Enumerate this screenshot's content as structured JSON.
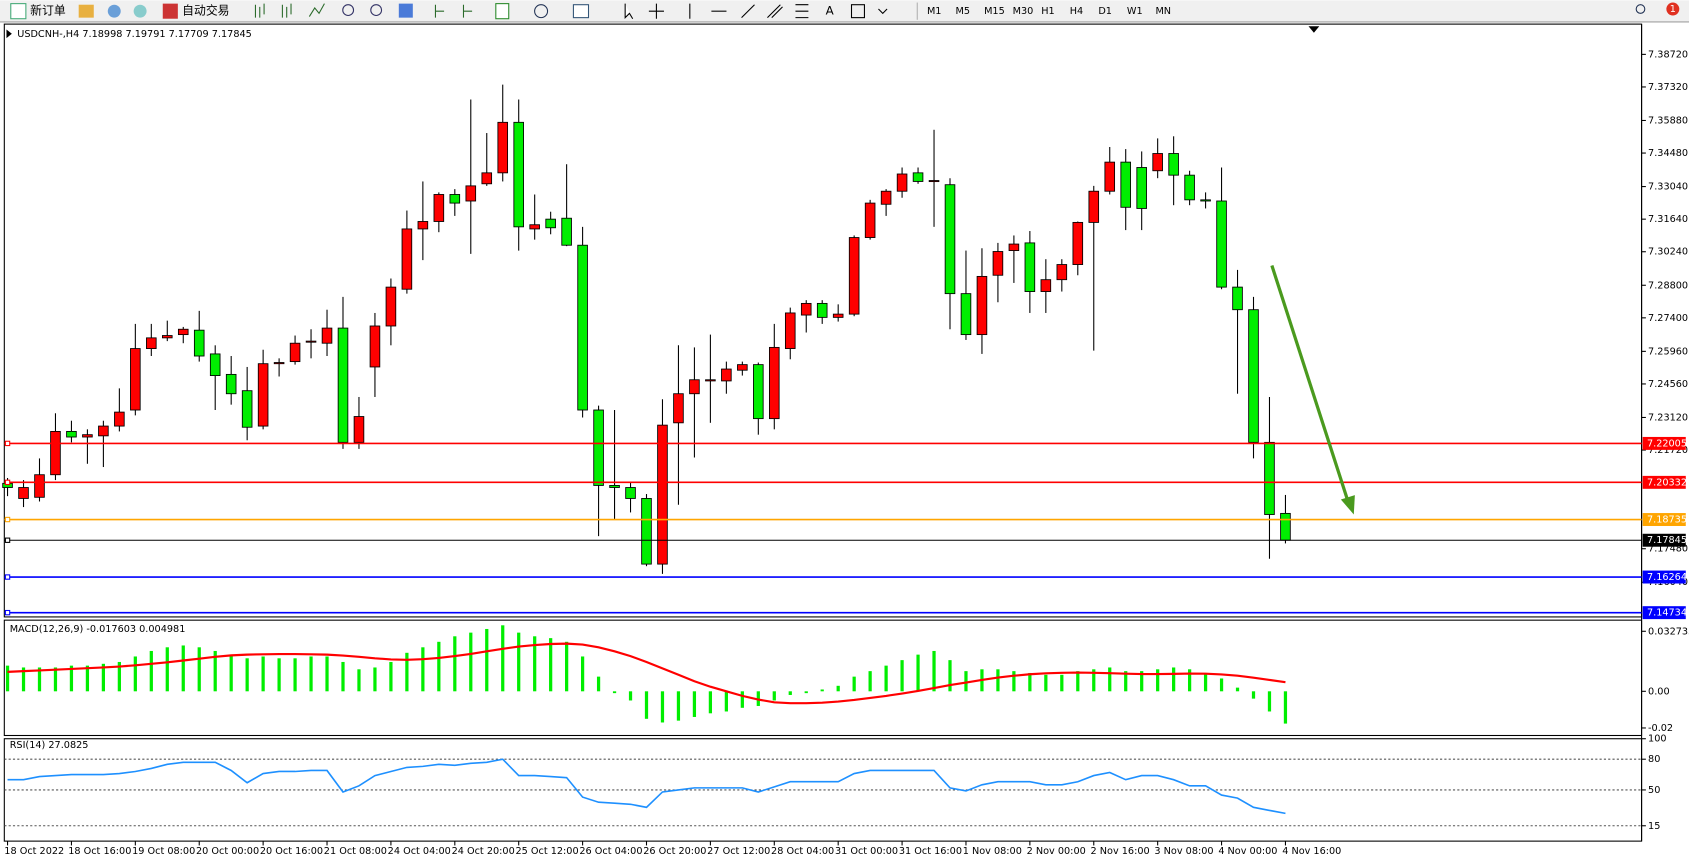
{
  "toolbar": {
    "new_order": "新订单",
    "auto_trading": "自动交易",
    "timeframes": [
      "M1",
      "M5",
      "M15",
      "M30",
      "H1",
      "H4",
      "D1",
      "W1",
      "MN"
    ],
    "badge": "1"
  },
  "chart_data": [
    {
      "type": "candlestick",
      "title": "USDCNH-,H4  7.18998 7.19791 7.17709 7.17845",
      "categories": [
        "18 Oct 2022",
        null,
        null,
        null,
        "18 Oct 16:00",
        null,
        null,
        null,
        "19 Oct 08:00",
        null,
        null,
        null,
        "20 Oct 00:00",
        null,
        null,
        null,
        "20 Oct 16:00",
        null,
        null,
        null,
        "21 Oct 08:00",
        null,
        null,
        null,
        "24 Oct 04:00",
        null,
        null,
        null,
        "24 Oct 20:00",
        null,
        null,
        null,
        "25 Oct 12:00",
        null,
        null,
        null,
        "26 Oct 04:00",
        null,
        null,
        null,
        "26 Oct 20:00",
        null,
        null,
        null,
        "27 Oct 12:00",
        null,
        null,
        null,
        "28 Oct 04:00",
        null,
        null,
        null,
        "31 Oct 00:00",
        null,
        null,
        null,
        "31 Oct 16:00",
        null,
        null,
        null,
        "1 Nov 08:00",
        null,
        null,
        null,
        "2 Nov 00:00",
        null,
        null,
        null,
        "2 Nov 16:00",
        null,
        null,
        null,
        "3 Nov 08:00",
        null,
        null,
        null,
        "4 Nov 00:00",
        null,
        null,
        null,
        "4 Nov 16:00"
      ],
      "open": [
        7.2029,
        7.1964,
        7.1969,
        7.2066,
        7.2252,
        7.2228,
        7.2233,
        7.2275,
        7.2344,
        7.2608,
        7.2654,
        7.2668,
        7.2687,
        7.2585,
        7.2497,
        7.2427,
        7.2275,
        7.2543,
        7.2552,
        7.2636,
        7.2631,
        7.2696,
        7.2205,
        7.2529,
        7.2705,
        7.2863,
        7.3122,
        7.3154,
        7.327,
        7.3242,
        7.3316,
        7.3363,
        7.358,
        7.3122,
        7.3164,
        7.3168,
        7.3052,
        7.2344,
        7.202,
        7.2011,
        7.1964,
        7.1682,
        7.2289,
        7.2414,
        7.2469,
        7.2469,
        7.2515,
        7.2539,
        7.2307,
        7.2608,
        7.2752,
        7.2802,
        7.2742,
        7.2756,
        7.3085,
        7.3228,
        7.3284,
        7.3363,
        7.3326,
        7.3312,
        7.2844,
        7.2668,
        7.2923,
        7.3029,
        7.3062,
        7.2853,
        7.2904,
        7.2969,
        7.315,
        7.3284,
        7.3409,
        7.3386,
        7.3372,
        7.3446,
        7.3353,
        7.3247,
        7.3242,
        7.2872,
        7.2775,
        7.2205,
        7.18998
      ],
      "high": [
        7.2052,
        7.2043,
        7.2136,
        7.233,
        7.2298,
        7.2261,
        7.2298,
        7.2437,
        7.2714,
        7.2714,
        7.2728,
        7.2701,
        7.277,
        7.2622,
        7.2576,
        7.2529,
        7.2603,
        7.2566,
        7.2664,
        7.2691,
        7.2775,
        7.283,
        7.24,
        7.2761,
        7.2909,
        7.3201,
        7.3326,
        7.3279,
        7.3293,
        7.3678,
        7.3534,
        7.3742,
        7.3678,
        7.327,
        7.3196,
        7.34,
        7.3131,
        7.2363,
        7.2344,
        7.2034,
        7.1983,
        7.239,
        7.2622,
        7.2613,
        7.2668,
        7.2552,
        7.2552,
        7.2548,
        7.2714,
        7.2784,
        7.2816,
        7.2816,
        7.2798,
        7.3094,
        7.3247,
        7.3293,
        7.3386,
        7.3386,
        7.3548,
        7.334,
        7.3029,
        7.3039,
        7.3062,
        7.3094,
        7.3113,
        7.2992,
        7.2992,
        7.3154,
        7.3307,
        7.3474,
        7.3465,
        7.3455,
        7.3511,
        7.352,
        7.3372,
        7.3279,
        7.3386,
        7.2946,
        7.283,
        7.24,
        7.19791
      ],
      "low": [
        7.1974,
        7.1927,
        7.1951,
        7.2043,
        7.2205,
        7.2113,
        7.2099,
        7.2252,
        7.2321,
        7.2576,
        7.264,
        7.2631,
        7.2552,
        7.2344,
        7.2367,
        7.2214,
        7.2261,
        7.2488,
        7.2539,
        7.2566,
        7.2576,
        7.2177,
        7.2177,
        7.24,
        7.2622,
        7.2844,
        7.2988,
        7.3108,
        7.3178,
        7.3015,
        7.3307,
        7.3326,
        7.3029,
        7.3076,
        7.3099,
        7.3048,
        7.2312,
        7.1802,
        7.1872,
        7.1904,
        7.1673,
        7.164,
        7.1937,
        7.214,
        7.2289,
        7.2414,
        7.2492,
        7.2238,
        7.2261,
        7.2562,
        7.2677,
        7.2714,
        7.2724,
        7.2747,
        7.3076,
        7.3178,
        7.3256,
        7.3316,
        7.3131,
        7.2691,
        7.2645,
        7.2585,
        7.2807,
        7.289,
        7.2761,
        7.2761,
        7.2853,
        7.2923,
        7.2599,
        7.327,
        7.3117,
        7.3117,
        7.334,
        7.3224,
        7.3224,
        7.321,
        7.2863,
        7.2414,
        7.2136,
        7.1705,
        7.17709
      ],
      "close": [
        7.2011,
        7.2011,
        7.2066,
        7.2252,
        7.2228,
        7.2238,
        7.2275,
        7.2335,
        7.2608,
        7.2654,
        7.2664,
        7.2691,
        7.2576,
        7.2492,
        7.2414,
        7.227,
        7.2543,
        7.2548,
        7.2631,
        7.264,
        7.2696,
        7.2205,
        7.2316,
        7.2705,
        7.2872,
        7.3122,
        7.3154,
        7.327,
        7.3233,
        7.3307,
        7.3363,
        7.358,
        7.3131,
        7.314,
        7.3127,
        7.3052,
        7.2344,
        7.202,
        7.2011,
        7.1964,
        7.1682,
        7.2279,
        7.2414,
        7.2474,
        7.2474,
        7.252,
        7.2539,
        7.2307,
        7.2613,
        7.2761,
        7.2802,
        7.2742,
        7.2756,
        7.3085,
        7.3233,
        7.3284,
        7.3358,
        7.3326,
        7.333,
        7.2844,
        7.2668,
        7.2918,
        7.3025,
        7.3057,
        7.2853,
        7.2904,
        7.2969,
        7.315,
        7.3284,
        7.3409,
        7.3215,
        7.321,
        7.3446,
        7.3353,
        7.3247,
        7.3242,
        7.2872,
        7.2775,
        7.2205,
        7.1895,
        7.17845
      ],
      "up_color": "#ff0000",
      "down_color": "#00ee00",
      "ylim": [
        7.1455,
        7.4002
      ],
      "yticks": [
        {
          "value": 7.3872,
          "label": "7.38720"
        },
        {
          "value": 7.3732,
          "label": "7.37320"
        },
        {
          "value": 7.3588,
          "label": "7.35880"
        },
        {
          "value": 7.3448,
          "label": "7.34480"
        },
        {
          "value": 7.3304,
          "label": "7.33040"
        },
        {
          "value": 7.3164,
          "label": "7.31640"
        },
        {
          "value": 7.3024,
          "label": "7.30240"
        },
        {
          "value": 7.288,
          "label": "7.28800"
        },
        {
          "value": 7.274,
          "label": "7.27400"
        },
        {
          "value": 7.2596,
          "label": "7.25960"
        },
        {
          "value": 7.2456,
          "label": "7.24560"
        },
        {
          "value": 7.2312,
          "label": "7.23120"
        },
        {
          "value": 7.2172,
          "label": "7.21720"
        },
        {
          "value": 7.1748,
          "label": "7.17480"
        },
        {
          "value": 7.1604,
          "label": "7.16040"
        }
      ],
      "hlines": [
        {
          "value": 7.22005,
          "color": "#ff0000"
        },
        {
          "value": 7.20332,
          "color": "#ff0000"
        },
        {
          "value": 7.18735,
          "color": "#ffa500"
        },
        {
          "value": 7.17845,
          "color": "#000000"
        },
        {
          "value": 7.16264,
          "color": "#0000ff"
        },
        {
          "value": 7.14734,
          "color": "#0000ff"
        }
      ]
    },
    {
      "type": "macd",
      "title": "MACD(12,26,9) -0.017603 0.004981",
      "series": [
        {
          "type": "bar",
          "color": "#00ee00",
          "values": [
            0.014,
            0.013,
            0.013,
            0.013,
            0.014,
            0.014,
            0.015,
            0.016,
            0.019,
            0.022,
            0.024,
            0.025,
            0.024,
            0.022,
            0.02,
            0.018,
            0.019,
            0.018,
            0.018,
            0.019,
            0.019,
            0.016,
            0.012,
            0.013,
            0.016,
            0.021,
            0.024,
            0.027,
            0.03,
            0.032,
            0.034,
            0.036,
            0.032,
            0.03,
            0.029,
            0.027,
            0.019,
            0.008,
            -0.001,
            -0.005,
            -0.015,
            -0.017,
            -0.016,
            -0.014,
            -0.012,
            -0.011,
            -0.009,
            -0.008,
            -0.005,
            -0.002,
            -0.001,
            0.001,
            0.003,
            0.008,
            0.011,
            0.014,
            0.017,
            0.02,
            0.022,
            0.017,
            0.011,
            0.012,
            0.012,
            0.011,
            0.01,
            0.009,
            0.009,
            0.011,
            0.012,
            0.013,
            0.011,
            0.011,
            0.012,
            0.013,
            0.012,
            0.01,
            0.007,
            0.002,
            -0.004,
            -0.011,
            -0.017603
          ]
        },
        {
          "type": "line",
          "color": "#ff0000",
          "values": [
            0.0106,
            0.011,
            0.0114,
            0.0118,
            0.0122,
            0.0126,
            0.013,
            0.0135,
            0.0142,
            0.015,
            0.0158,
            0.0168,
            0.0178,
            0.0188,
            0.0196,
            0.02,
            0.0202,
            0.0203,
            0.0203,
            0.0202,
            0.02,
            0.0195,
            0.0188,
            0.018,
            0.0174,
            0.0172,
            0.0175,
            0.0182,
            0.0192,
            0.0204,
            0.0218,
            0.0232,
            0.0244,
            0.0252,
            0.0258,
            0.026,
            0.0255,
            0.024,
            0.0218,
            0.0192,
            0.016,
            0.0125,
            0.009,
            0.0055,
            0.0025,
            0.0,
            -0.0025,
            -0.0045,
            -0.006,
            -0.0065,
            -0.0065,
            -0.0062,
            -0.0056,
            -0.0047,
            -0.0036,
            -0.0025,
            -0.0012,
            0.0002,
            0.0018,
            0.0034,
            0.0048,
            0.0062,
            0.0075,
            0.0085,
            0.0093,
            0.0098,
            0.0101,
            0.0102,
            0.0101,
            0.0099,
            0.0096,
            0.0094,
            0.0094,
            0.0095,
            0.0097,
            0.0096,
            0.0092,
            0.0085,
            0.0074,
            0.0062,
            0.004981
          ]
        }
      ],
      "ylim": [
        -0.0241,
        0.0388
      ],
      "yticks": [
        0.032735,
        {
          "value": 0,
          "label": "0.00"
        },
        -0.02
      ]
    },
    {
      "type": "line",
      "title": "RSI(14) 27.0825",
      "color": "#1e90ff",
      "values": [
        60,
        60,
        63,
        64,
        65,
        65,
        65,
        66,
        68,
        71,
        75,
        77,
        77,
        77,
        69,
        57,
        66,
        68,
        68,
        69,
        69,
        48,
        54,
        64,
        68,
        72,
        73,
        75,
        74,
        76,
        77,
        80,
        64,
        64,
        63,
        62,
        43,
        38,
        37,
        36,
        33,
        48,
        50,
        52,
        52,
        52,
        52,
        48,
        53,
        58,
        58,
        58,
        58,
        66,
        69,
        69,
        69,
        69,
        69,
        52,
        49,
        55,
        58,
        58,
        58,
        55,
        55,
        58,
        64,
        67,
        60,
        64,
        64,
        60,
        54,
        54,
        45,
        42,
        33,
        30,
        27.0825
      ],
      "ylim": [
        0,
        100
      ],
      "yticks": [
        100,
        80,
        50,
        15
      ]
    }
  ]
}
